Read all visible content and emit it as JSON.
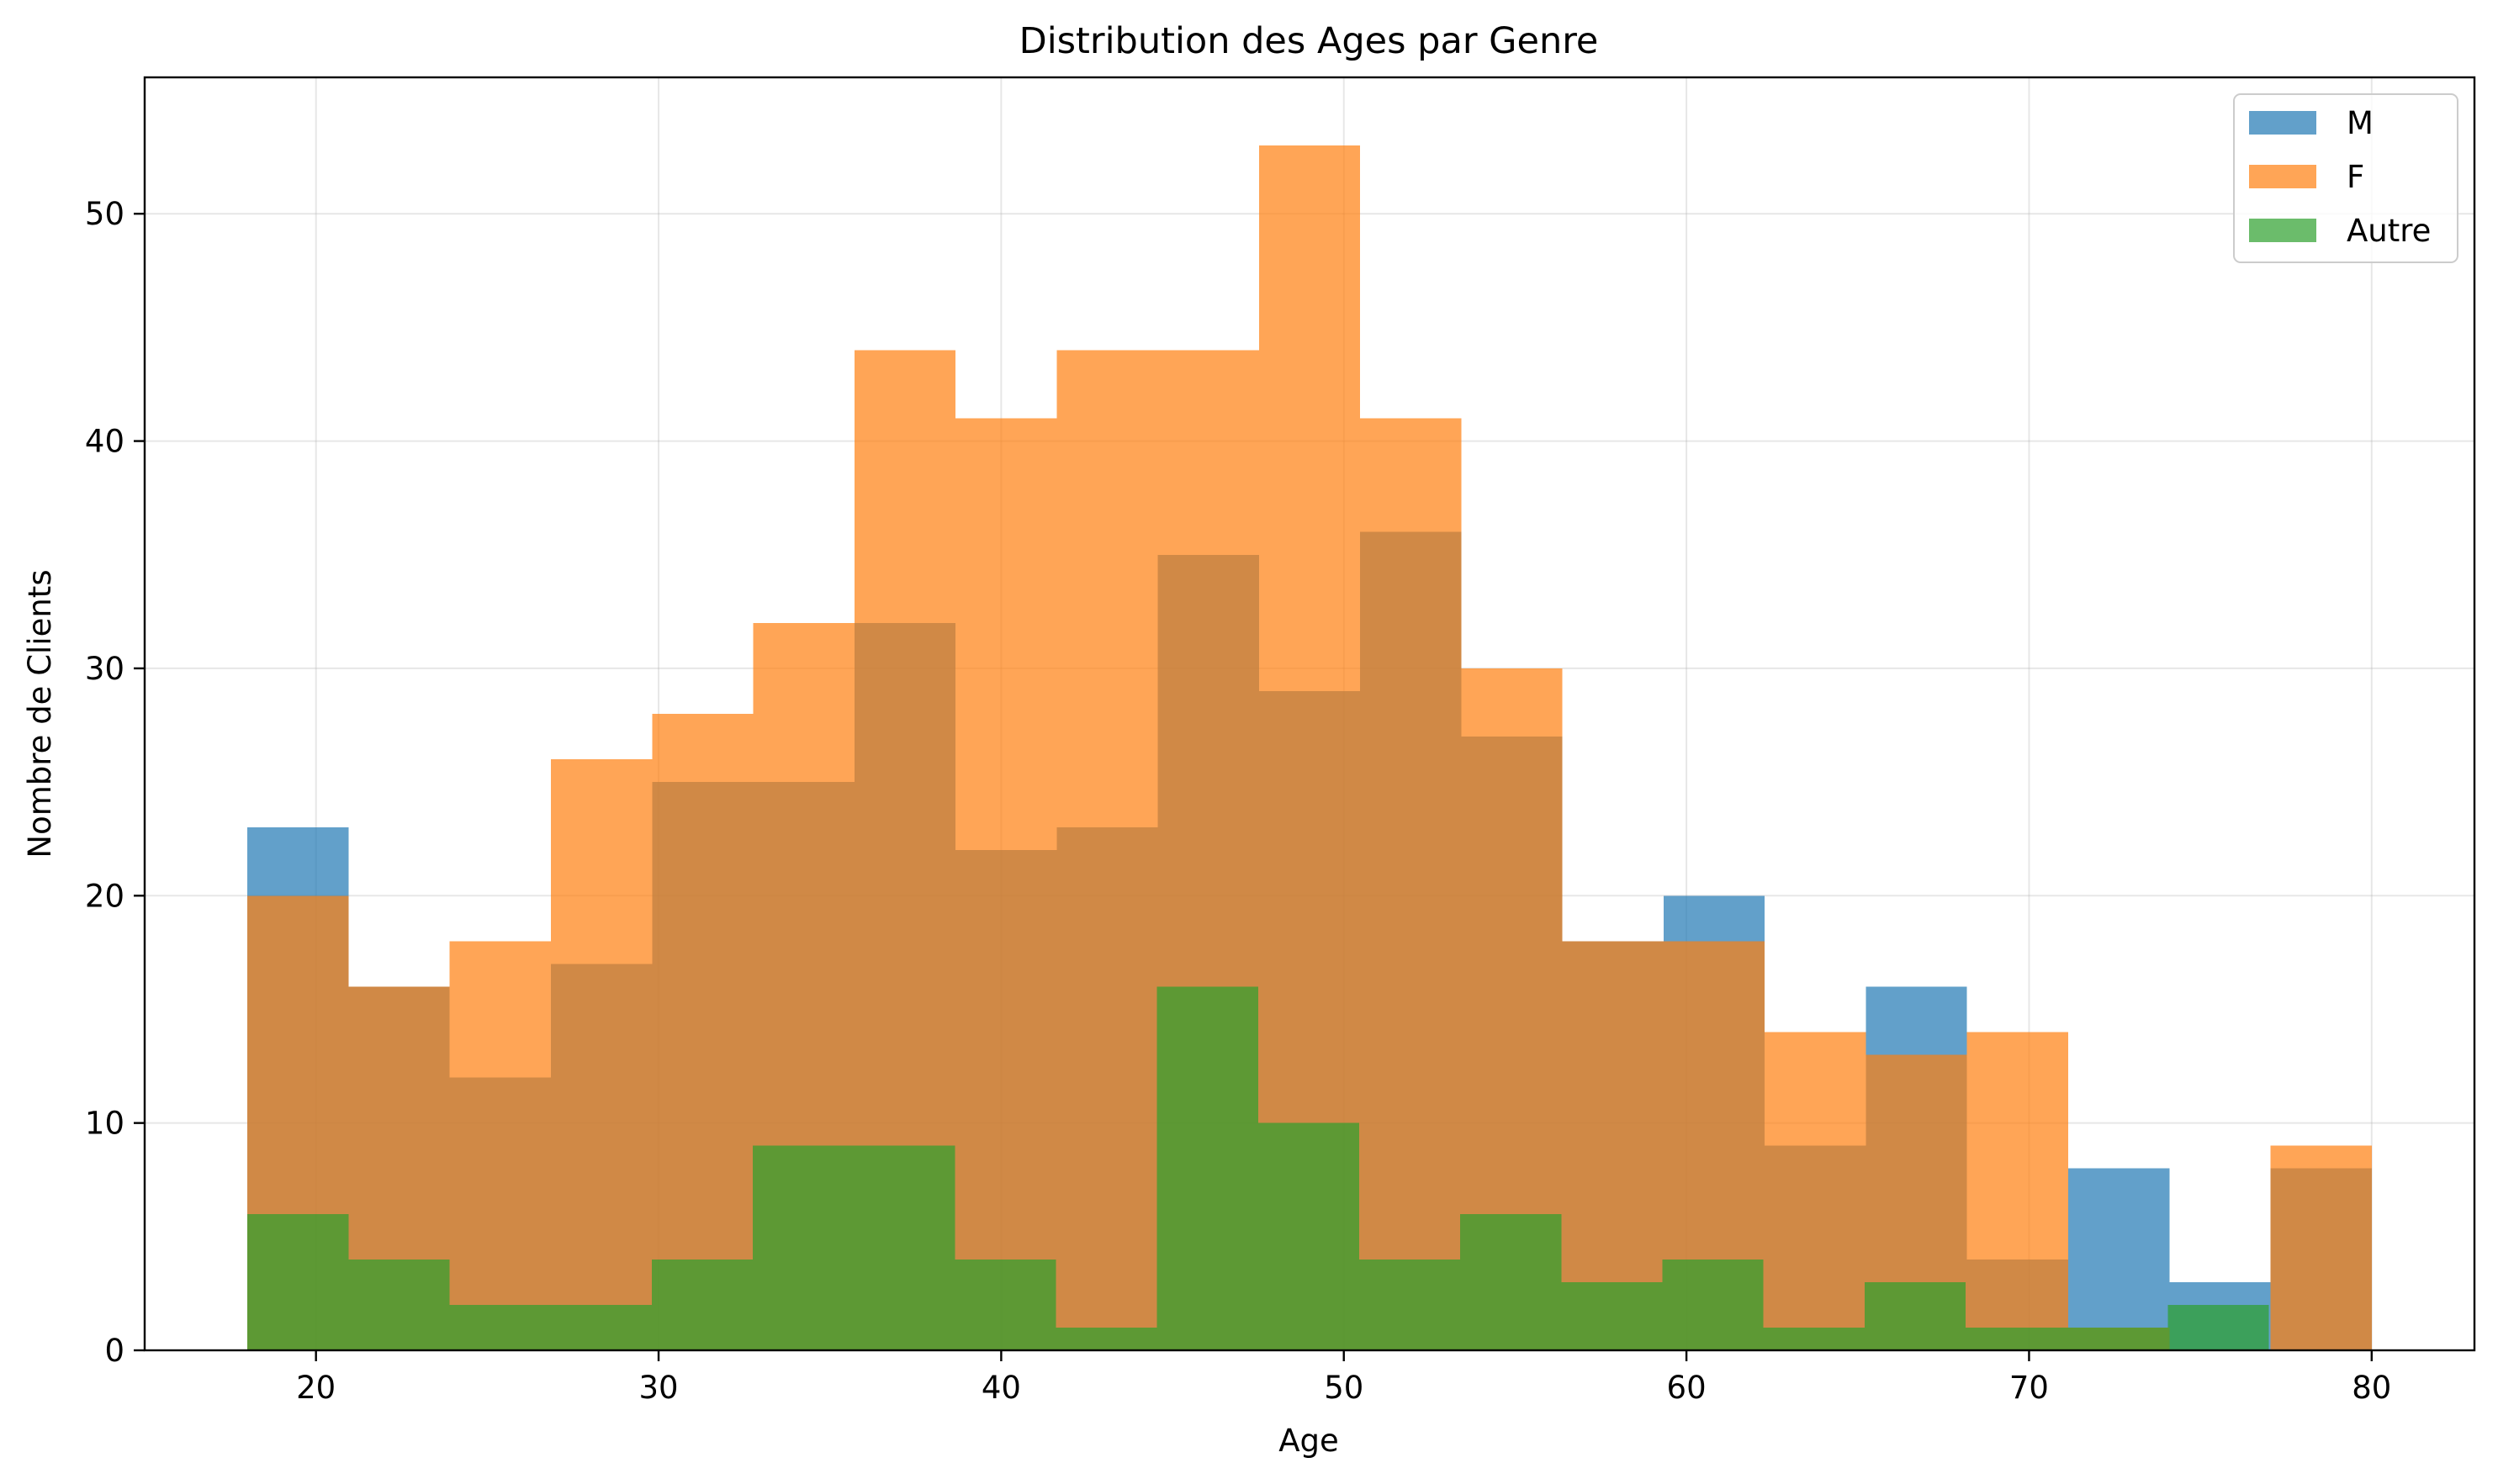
{
  "chart_data": {
    "type": "bar",
    "title": "Distribution des Ages par Genre",
    "xlabel": "Age",
    "ylabel": "Nombre de Clients",
    "xlim": [
      15,
      83
    ],
    "ylim": [
      0,
      56
    ],
    "xticks": [
      20,
      30,
      40,
      50,
      60,
      70,
      80
    ],
    "yticks": [
      0,
      10,
      20,
      30,
      40,
      50
    ],
    "grid": true,
    "legend_position": "top-right",
    "series": [
      {
        "name": "M",
        "color": "#1f77b4",
        "opacity": 0.7,
        "range": [
          18,
          80
        ],
        "values": [
          23,
          16,
          12,
          17,
          25,
          25,
          32,
          22,
          23,
          35,
          29,
          36,
          27,
          18,
          20,
          9,
          16,
          4,
          8,
          3,
          8
        ]
      },
      {
        "name": "F",
        "color": "#ff7f0e",
        "opacity": 0.7,
        "range": [
          18,
          80
        ],
        "values": [
          20,
          16,
          18,
          26,
          28,
          32,
          44,
          41,
          44,
          44,
          53,
          41,
          30,
          18,
          18,
          14,
          13,
          14,
          1,
          0,
          9
        ]
      },
      {
        "name": "Autre",
        "color": "#2ca02c",
        "opacity": 0.7,
        "range": [
          18,
          77
        ],
        "values": [
          6,
          4,
          2,
          2,
          4,
          9,
          9,
          4,
          1,
          16,
          10,
          4,
          6,
          3,
          4,
          1,
          3,
          1,
          1,
          2
        ]
      }
    ]
  }
}
